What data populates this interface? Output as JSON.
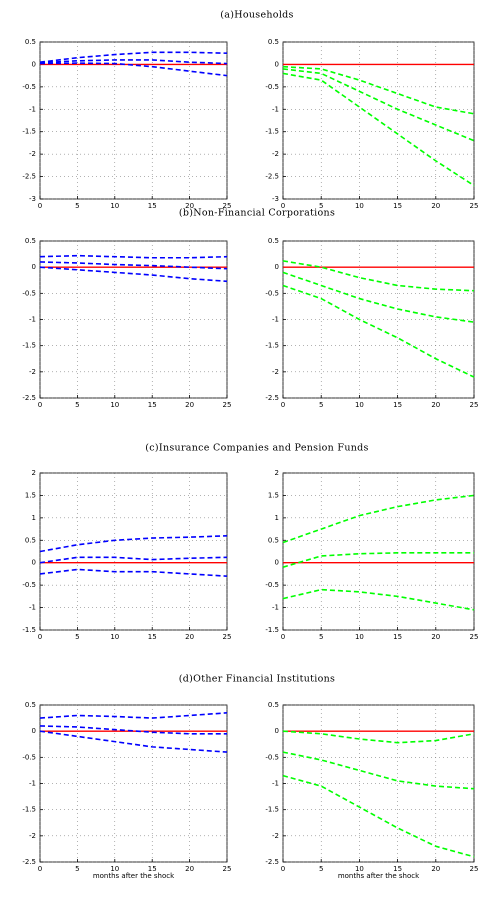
{
  "chart_data": [
    {
      "type": "line",
      "title": "(a)Households",
      "x": [
        0,
        5,
        10,
        15,
        20,
        25
      ],
      "xlim": [
        0,
        25
      ],
      "xticks": [
        0,
        5,
        10,
        15,
        20,
        25
      ],
      "ylim": [
        -3,
        0.5
      ],
      "yticks": [
        -3,
        -2.5,
        -2,
        -1.5,
        -1,
        -0.5,
        0,
        0.5
      ],
      "grid": true,
      "series": [
        {
          "color": "#ff0000",
          "style": "solid",
          "values": [
            0,
            0,
            0,
            0,
            0,
            0
          ]
        },
        {
          "color": "#0000ff",
          "style": "dashed",
          "values": [
            0.05,
            0.15,
            0.22,
            0.27,
            0.27,
            0.25
          ]
        },
        {
          "color": "#0000ff",
          "style": "dashed",
          "values": [
            0.04,
            0.08,
            0.1,
            0.1,
            0.05,
            0.02
          ]
        },
        {
          "color": "#0000ff",
          "style": "dashed",
          "values": [
            0.02,
            0.03,
            0.02,
            -0.05,
            -0.15,
            -0.25
          ]
        }
      ]
    },
    {
      "type": "line",
      "x": [
        0,
        5,
        10,
        15,
        20,
        25
      ],
      "xlim": [
        0,
        25
      ],
      "xticks": [
        0,
        5,
        10,
        15,
        20,
        25
      ],
      "ylim": [
        -3,
        0.5
      ],
      "yticks": [
        -3,
        -2.5,
        -2,
        -1.5,
        -1,
        -0.5,
        0,
        0.5
      ],
      "grid": true,
      "series": [
        {
          "color": "#ff0000",
          "style": "solid",
          "values": [
            0,
            0,
            0,
            0,
            0,
            0
          ]
        },
        {
          "color": "#00ff00",
          "style": "dashed",
          "values": [
            -0.05,
            -0.1,
            -0.35,
            -0.65,
            -0.95,
            -1.1
          ]
        },
        {
          "color": "#00ff00",
          "style": "dashed",
          "values": [
            -0.1,
            -0.2,
            -0.6,
            -1.0,
            -1.35,
            -1.7
          ]
        },
        {
          "color": "#00ff00",
          "style": "dashed",
          "values": [
            -0.2,
            -0.35,
            -0.95,
            -1.55,
            -2.15,
            -2.7
          ]
        }
      ]
    },
    {
      "type": "line",
      "title": "(b)Non-Financial Corporations",
      "x": [
        0,
        5,
        10,
        15,
        20,
        25
      ],
      "xlim": [
        0,
        25
      ],
      "xticks": [
        0,
        5,
        10,
        15,
        20,
        25
      ],
      "ylim": [
        -2.5,
        0.5
      ],
      "yticks": [
        -2.5,
        -2,
        -1.5,
        -1,
        -0.5,
        0,
        0.5
      ],
      "grid": true,
      "series": [
        {
          "color": "#ff0000",
          "style": "solid",
          "values": [
            0,
            0,
            0,
            0,
            0,
            0
          ]
        },
        {
          "color": "#0000ff",
          "style": "dashed",
          "values": [
            0.2,
            0.22,
            0.2,
            0.18,
            0.18,
            0.2
          ]
        },
        {
          "color": "#0000ff",
          "style": "dashed",
          "values": [
            0.1,
            0.08,
            0.05,
            0.03,
            0.0,
            -0.03
          ]
        },
        {
          "color": "#0000ff",
          "style": "dashed",
          "values": [
            0.0,
            -0.05,
            -0.1,
            -0.15,
            -0.22,
            -0.27
          ]
        }
      ]
    },
    {
      "type": "line",
      "x": [
        0,
        5,
        10,
        15,
        20,
        25
      ],
      "xlim": [
        0,
        25
      ],
      "xticks": [
        0,
        5,
        10,
        15,
        20,
        25
      ],
      "ylim": [
        -2.5,
        0.5
      ],
      "yticks": [
        -2.5,
        -2,
        -1.5,
        -1,
        -0.5,
        0,
        0.5
      ],
      "grid": true,
      "series": [
        {
          "color": "#ff0000",
          "style": "solid",
          "values": [
            0,
            0,
            0,
            0,
            0,
            0
          ]
        },
        {
          "color": "#00ff00",
          "style": "dashed",
          "values": [
            0.12,
            0.0,
            -0.2,
            -0.35,
            -0.42,
            -0.45
          ]
        },
        {
          "color": "#00ff00",
          "style": "dashed",
          "values": [
            -0.1,
            -0.35,
            -0.6,
            -0.8,
            -0.95,
            -1.05
          ]
        },
        {
          "color": "#00ff00",
          "style": "dashed",
          "values": [
            -0.35,
            -0.6,
            -1.0,
            -1.35,
            -1.75,
            -2.1
          ]
        }
      ]
    },
    {
      "type": "line",
      "title": "(c)Insurance Companies and Pension Funds",
      "x": [
        0,
        5,
        10,
        15,
        20,
        25
      ],
      "xlim": [
        0,
        25
      ],
      "xticks": [
        0,
        5,
        10,
        15,
        20,
        25
      ],
      "ylim": [
        -1.5,
        2
      ],
      "yticks": [
        -1.5,
        -1,
        -0.5,
        0,
        0.5,
        1,
        1.5,
        2
      ],
      "grid": true,
      "series": [
        {
          "color": "#ff0000",
          "style": "solid",
          "values": [
            0,
            0,
            0,
            0,
            0,
            0
          ]
        },
        {
          "color": "#0000ff",
          "style": "dashed",
          "values": [
            0.25,
            0.4,
            0.5,
            0.55,
            0.57,
            0.6
          ]
        },
        {
          "color": "#0000ff",
          "style": "dashed",
          "values": [
            0.0,
            0.12,
            0.12,
            0.07,
            0.1,
            0.12
          ]
        },
        {
          "color": "#0000ff",
          "style": "dashed",
          "values": [
            -0.25,
            -0.15,
            -0.2,
            -0.2,
            -0.25,
            -0.3
          ]
        }
      ]
    },
    {
      "type": "line",
      "x": [
        0,
        5,
        10,
        15,
        20,
        25
      ],
      "xlim": [
        0,
        25
      ],
      "xticks": [
        0,
        5,
        10,
        15,
        20,
        25
      ],
      "ylim": [
        -1.5,
        2
      ],
      "yticks": [
        -1.5,
        -1,
        -0.5,
        0,
        0.5,
        1,
        1.5,
        2
      ],
      "grid": true,
      "series": [
        {
          "color": "#ff0000",
          "style": "solid",
          "values": [
            0,
            0,
            0,
            0,
            0,
            0
          ]
        },
        {
          "color": "#00ff00",
          "style": "dashed",
          "values": [
            0.45,
            0.75,
            1.05,
            1.25,
            1.4,
            1.5
          ]
        },
        {
          "color": "#00ff00",
          "style": "dashed",
          "values": [
            -0.1,
            0.15,
            0.2,
            0.22,
            0.22,
            0.22
          ]
        },
        {
          "color": "#00ff00",
          "style": "dashed",
          "values": [
            -0.8,
            -0.6,
            -0.65,
            -0.75,
            -0.9,
            -1.05
          ]
        }
      ]
    },
    {
      "type": "line",
      "title": "(d)Other Financial Institutions",
      "xlabel": "months after the shock",
      "x": [
        0,
        5,
        10,
        15,
        20,
        25
      ],
      "xlim": [
        0,
        25
      ],
      "xticks": [
        0,
        5,
        10,
        15,
        20,
        25
      ],
      "ylim": [
        -2.5,
        0.5
      ],
      "yticks": [
        -2.5,
        -2,
        -1.5,
        -1,
        -0.5,
        0,
        0.5
      ],
      "grid": true,
      "series": [
        {
          "color": "#ff0000",
          "style": "solid",
          "values": [
            0,
            0,
            0,
            0,
            0,
            0
          ]
        },
        {
          "color": "#0000ff",
          "style": "dashed",
          "values": [
            0.25,
            0.3,
            0.28,
            0.25,
            0.3,
            0.35
          ]
        },
        {
          "color": "#0000ff",
          "style": "dashed",
          "values": [
            0.1,
            0.08,
            0.03,
            -0.02,
            -0.05,
            -0.05
          ]
        },
        {
          "color": "#0000ff",
          "style": "dashed",
          "values": [
            0.0,
            -0.1,
            -0.2,
            -0.3,
            -0.35,
            -0.4
          ]
        }
      ]
    },
    {
      "type": "line",
      "xlabel": "months after the shock",
      "x": [
        0,
        5,
        10,
        15,
        20,
        25
      ],
      "xlim": [
        0,
        25
      ],
      "xticks": [
        0,
        5,
        10,
        15,
        20,
        25
      ],
      "ylim": [
        -2.5,
        0.5
      ],
      "yticks": [
        -2.5,
        -2,
        -1.5,
        -1,
        -0.5,
        0,
        0.5
      ],
      "grid": true,
      "series": [
        {
          "color": "#ff0000",
          "style": "solid",
          "values": [
            0,
            0,
            0,
            0,
            0,
            0
          ]
        },
        {
          "color": "#00ff00",
          "style": "dashed",
          "values": [
            0.0,
            -0.05,
            -0.15,
            -0.22,
            -0.18,
            -0.05
          ]
        },
        {
          "color": "#00ff00",
          "style": "dashed",
          "values": [
            -0.4,
            -0.55,
            -0.75,
            -0.95,
            -1.05,
            -1.1
          ]
        },
        {
          "color": "#00ff00",
          "style": "dashed",
          "values": [
            -0.85,
            -1.05,
            -1.45,
            -1.85,
            -2.2,
            -2.4
          ]
        }
      ]
    }
  ]
}
